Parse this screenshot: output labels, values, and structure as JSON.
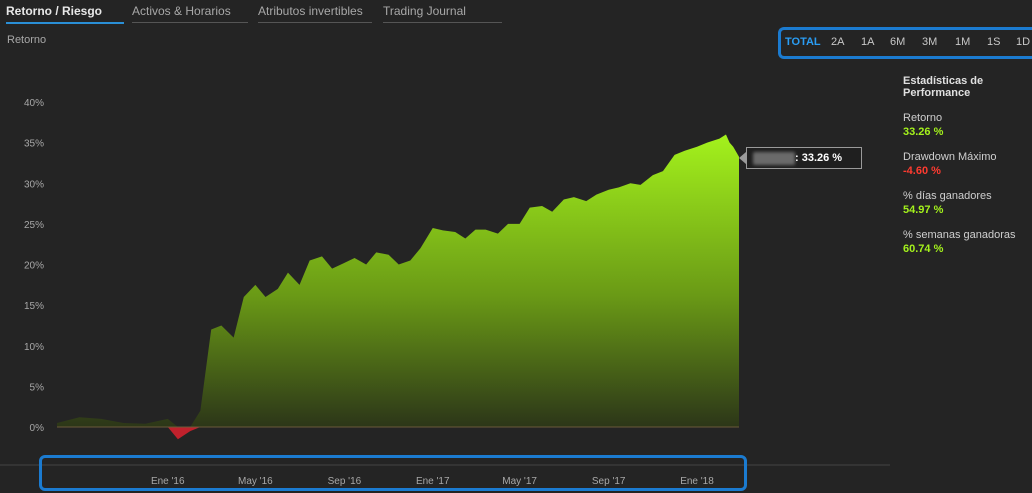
{
  "tabs": [
    {
      "label": "Retorno / Riesgo",
      "active": true
    },
    {
      "label": "Activos & Horarios",
      "active": false
    },
    {
      "label": "Atributos invertibles",
      "active": false
    },
    {
      "label": "Trading Journal",
      "active": false
    }
  ],
  "section_label": "Retorno",
  "ranges": [
    {
      "label": "TOTAL",
      "active": true
    },
    {
      "label": "2A",
      "active": false
    },
    {
      "label": "1A",
      "active": false
    },
    {
      "label": "6M",
      "active": false
    },
    {
      "label": "3M",
      "active": false
    },
    {
      "label": "1M",
      "active": false
    },
    {
      "label": "1S",
      "active": false
    },
    {
      "label": "1D",
      "active": false
    }
  ],
  "stats": {
    "title": "Estadísticas de Performance",
    "items": [
      {
        "label": "Retorno",
        "value": "33.26 %",
        "color": "#a4f21c"
      },
      {
        "label": "Drawdown Máximo",
        "value": "-4.60 %",
        "color": "#ff3b30"
      },
      {
        "label": "% días ganadores",
        "value": "54.97 %",
        "color": "#a4f21c"
      },
      {
        "label": "% semanas ganadoras",
        "value": "60.74 %",
        "color": "#a4f21c"
      }
    ]
  },
  "tooltip": {
    "text": ": 33.26 %"
  },
  "colors": {
    "accent": "#2a9df4",
    "positive": "#a4f21c",
    "negative": "#ff3b30"
  },
  "chart_data": {
    "type": "area",
    "ylim": [
      -2,
      40
    ],
    "yticks": [
      "0%",
      "5%",
      "10%",
      "15%",
      "20%",
      "25%",
      "30%",
      "35%",
      "40%"
    ],
    "xticks": [
      "Ene '16",
      "May '16",
      "Sep '16",
      "Ene '17",
      "May '17",
      "Sep '17",
      "Ene '18"
    ],
    "grid": false,
    "x": [
      "2015-08-01",
      "2015-09-01",
      "2015-10-01",
      "2015-11-01",
      "2015-12-01",
      "2016-01-01",
      "2016-01-15",
      "2016-02-01",
      "2016-02-15",
      "2016-03-01",
      "2016-03-15",
      "2016-04-01",
      "2016-04-15",
      "2016-05-01",
      "2016-05-15",
      "2016-06-01",
      "2016-06-15",
      "2016-07-01",
      "2016-07-15",
      "2016-08-01",
      "2016-08-15",
      "2016-09-01",
      "2016-09-15",
      "2016-10-01",
      "2016-10-15",
      "2016-11-01",
      "2016-11-15",
      "2016-12-01",
      "2016-12-15",
      "2017-01-01",
      "2017-01-15",
      "2017-02-01",
      "2017-02-15",
      "2017-03-01",
      "2017-03-15",
      "2017-04-01",
      "2017-04-15",
      "2017-05-01",
      "2017-05-15",
      "2017-06-01",
      "2017-06-15",
      "2017-07-01",
      "2017-07-15",
      "2017-08-01",
      "2017-08-15",
      "2017-09-01",
      "2017-09-15",
      "2017-10-01",
      "2017-10-15",
      "2017-11-01",
      "2017-11-15",
      "2017-12-01",
      "2017-12-15",
      "2018-01-01",
      "2018-01-15",
      "2018-02-01",
      "2018-02-10",
      "2018-02-15",
      "2018-02-20",
      "2018-02-28"
    ],
    "series": [
      {
        "values": [
          0.5,
          1.2,
          1.0,
          0.5,
          0.4,
          1.0,
          -1.5,
          -0.5,
          2.0,
          12.0,
          12.5,
          11.0,
          16.0,
          17.5,
          16.0,
          17.0,
          19.0,
          17.5,
          20.5,
          21.0,
          19.5,
          20.2,
          20.8,
          20.0,
          21.5,
          21.2,
          20.0,
          20.5,
          22.0,
          24.5,
          24.2,
          24.0,
          23.2,
          24.3,
          24.3,
          23.8,
          25.0,
          25.0,
          27.0,
          27.2,
          26.5,
          28.0,
          28.3,
          27.8,
          28.6,
          29.2,
          29.5,
          30.0,
          29.8,
          31.0,
          31.5,
          33.5,
          34.0,
          34.5,
          35.0,
          35.5,
          36.0,
          35.0,
          34.5,
          33.26
        ]
      }
    ]
  }
}
